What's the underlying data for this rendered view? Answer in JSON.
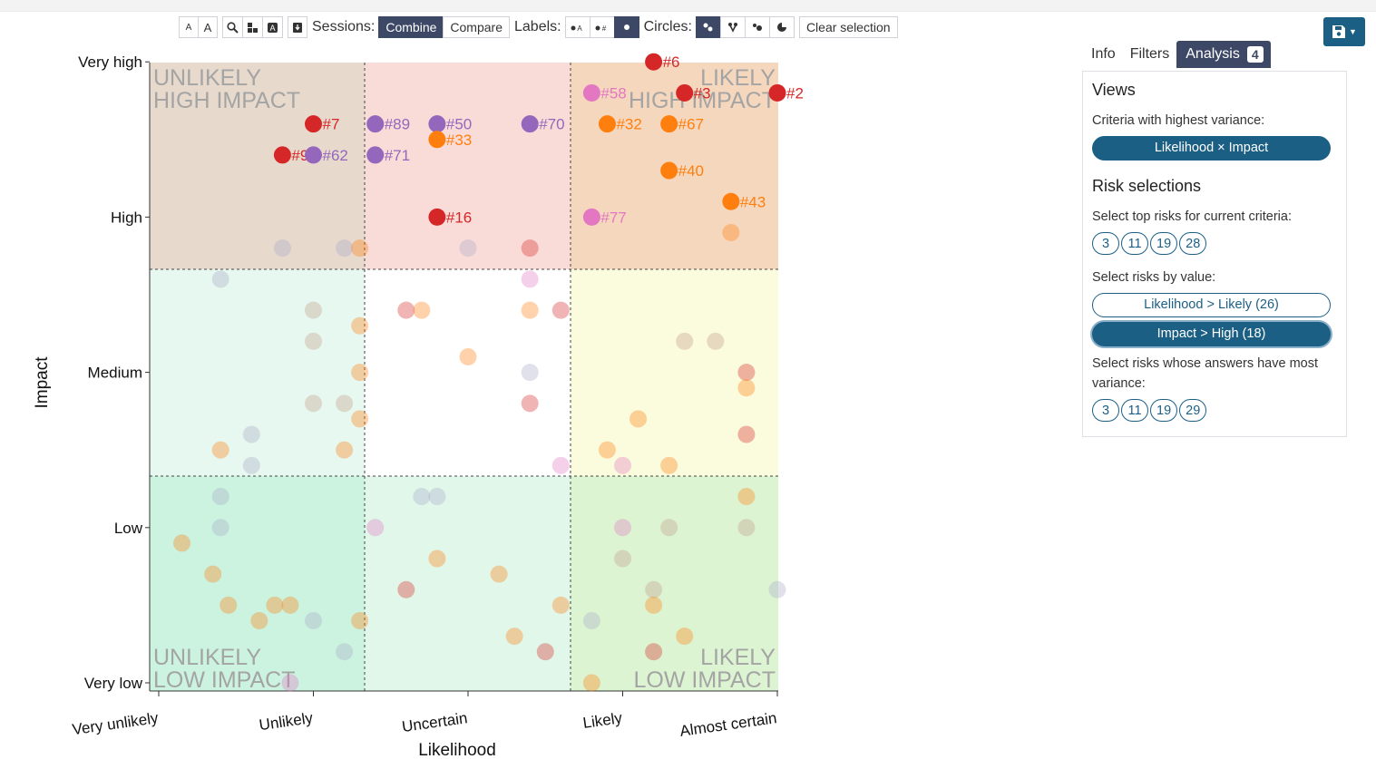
{
  "toolbar": {
    "font_small": "A",
    "font_large": "A",
    "sessions_label": "Sessions:",
    "combine": "Combine",
    "compare": "Compare",
    "labels_label": "Labels:",
    "circles_label": "Circles:",
    "clear": "Clear selection"
  },
  "tabs": {
    "info": "Info",
    "filters": "Filters",
    "analysis": "Analysis",
    "analysis_count": "4"
  },
  "panel": {
    "views_title": "Views",
    "variance_label": "Criteria with highest variance:",
    "variance_pill": "Likelihood × Impact",
    "risk_title": "Risk selections",
    "top_label": "Select top risks for current criteria:",
    "top_nums": [
      "3",
      "11",
      "19",
      "28"
    ],
    "value_label": "Select risks by value:",
    "likely_pill": "Likelihood > Likely (26)",
    "high_pill": "Impact > High (18)",
    "variance_answers_label": "Select risks whose answers have most variance:",
    "var_nums": [
      "3",
      "11",
      "19",
      "29"
    ]
  },
  "chart_data": {
    "type": "scatter",
    "xlabel": "Likelihood",
    "ylabel": "Impact",
    "x_categories": [
      "Very unlikely",
      "Unlikely",
      "Uncertain",
      "Likely",
      "Almost certain"
    ],
    "y_categories": [
      "Very low",
      "Low",
      "Medium",
      "High",
      "Very high"
    ],
    "quadrant_labels": {
      "top_left": [
        "UNLIKELY",
        "HIGH IMPACT"
      ],
      "top_right": [
        "LIKELY",
        "HIGH IMPACT"
      ],
      "bottom_left": [
        "UNLIKELY",
        "LOW IMPACT"
      ],
      "bottom_right": [
        "LIKELY",
        "LOW IMPACT"
      ]
    },
    "colors": {
      "red": "#d62728",
      "purple": "#9467bd",
      "orange": "#ff7f0e",
      "pink": "#e377c2",
      "gray": "#a9a9c9",
      "brown": "#c49a8a"
    },
    "highlighted": [
      {
        "label": "#6",
        "x": 4.2,
        "y": 5.0,
        "color": "red"
      },
      {
        "label": "#2",
        "x": 5.0,
        "y": 4.8,
        "color": "red"
      },
      {
        "label": "#3",
        "x": 4.4,
        "y": 4.8,
        "color": "red"
      },
      {
        "label": "#58",
        "x": 3.8,
        "y": 4.8,
        "color": "pink"
      },
      {
        "label": "#7",
        "x": 2.0,
        "y": 4.6,
        "color": "red"
      },
      {
        "label": "#89",
        "x": 2.4,
        "y": 4.6,
        "color": "purple"
      },
      {
        "label": "#50",
        "x": 2.8,
        "y": 4.6,
        "color": "purple"
      },
      {
        "label": "#70",
        "x": 3.4,
        "y": 4.6,
        "color": "purple"
      },
      {
        "label": "#32",
        "x": 3.9,
        "y": 4.6,
        "color": "orange"
      },
      {
        "label": "#67",
        "x": 4.3,
        "y": 4.6,
        "color": "orange"
      },
      {
        "label": "#33",
        "x": 2.8,
        "y": 4.5,
        "color": "orange"
      },
      {
        "label": "#9",
        "x": 1.8,
        "y": 4.4,
        "color": "red"
      },
      {
        "label": "#62",
        "x": 2.0,
        "y": 4.4,
        "color": "purple"
      },
      {
        "label": "#71",
        "x": 2.4,
        "y": 4.4,
        "color": "purple"
      },
      {
        "label": "#40",
        "x": 4.3,
        "y": 4.3,
        "color": "orange"
      },
      {
        "label": "#43",
        "x": 4.7,
        "y": 4.1,
        "color": "orange"
      },
      {
        "label": "#16",
        "x": 2.8,
        "y": 4.0,
        "color": "red"
      },
      {
        "label": "#77",
        "x": 3.8,
        "y": 4.0,
        "color": "pink"
      }
    ],
    "faded": [
      {
        "x": 1.8,
        "y": 3.8,
        "c": "gray"
      },
      {
        "x": 2.2,
        "y": 3.8,
        "c": "gray"
      },
      {
        "x": 2.3,
        "y": 3.8,
        "c": "orange"
      },
      {
        "x": 3.0,
        "y": 3.8,
        "c": "gray"
      },
      {
        "x": 3.4,
        "y": 3.8,
        "c": "red"
      },
      {
        "x": 4.7,
        "y": 3.9,
        "c": "orange"
      },
      {
        "x": 1.4,
        "y": 3.6,
        "c": "gray"
      },
      {
        "x": 3.4,
        "y": 3.6,
        "c": "pink"
      },
      {
        "x": 2.0,
        "y": 3.4,
        "c": "brown"
      },
      {
        "x": 2.6,
        "y": 3.4,
        "c": "red"
      },
      {
        "x": 2.7,
        "y": 3.4,
        "c": "orange"
      },
      {
        "x": 3.4,
        "y": 3.4,
        "c": "orange"
      },
      {
        "x": 3.6,
        "y": 3.4,
        "c": "red"
      },
      {
        "x": 2.3,
        "y": 3.3,
        "c": "orange"
      },
      {
        "x": 2.0,
        "y": 3.2,
        "c": "brown"
      },
      {
        "x": 4.4,
        "y": 3.2,
        "c": "brown"
      },
      {
        "x": 4.6,
        "y": 3.2,
        "c": "brown"
      },
      {
        "x": 3.0,
        "y": 3.1,
        "c": "orange"
      },
      {
        "x": 2.3,
        "y": 3.0,
        "c": "orange"
      },
      {
        "x": 3.4,
        "y": 3.0,
        "c": "gray"
      },
      {
        "x": 4.8,
        "y": 3.0,
        "c": "red"
      },
      {
        "x": 4.8,
        "y": 2.9,
        "c": "orange"
      },
      {
        "x": 2.0,
        "y": 2.8,
        "c": "brown"
      },
      {
        "x": 2.2,
        "y": 2.8,
        "c": "brown"
      },
      {
        "x": 3.4,
        "y": 2.8,
        "c": "red"
      },
      {
        "x": 2.3,
        "y": 2.7,
        "c": "orange"
      },
      {
        "x": 4.1,
        "y": 2.7,
        "c": "orange"
      },
      {
        "x": 1.6,
        "y": 2.6,
        "c": "gray"
      },
      {
        "x": 4.8,
        "y": 2.6,
        "c": "red"
      },
      {
        "x": 1.4,
        "y": 2.5,
        "c": "orange"
      },
      {
        "x": 2.2,
        "y": 2.5,
        "c": "orange"
      },
      {
        "x": 3.9,
        "y": 2.5,
        "c": "orange"
      },
      {
        "x": 1.6,
        "y": 2.4,
        "c": "gray"
      },
      {
        "x": 3.6,
        "y": 2.4,
        "c": "pink"
      },
      {
        "x": 4.0,
        "y": 2.4,
        "c": "pink"
      },
      {
        "x": 4.3,
        "y": 2.4,
        "c": "orange"
      },
      {
        "x": 1.4,
        "y": 2.2,
        "c": "gray"
      },
      {
        "x": 2.7,
        "y": 2.2,
        "c": "gray"
      },
      {
        "x": 2.8,
        "y": 2.2,
        "c": "gray"
      },
      {
        "x": 4.8,
        "y": 2.2,
        "c": "orange"
      },
      {
        "x": 1.4,
        "y": 2.0,
        "c": "gray"
      },
      {
        "x": 2.4,
        "y": 2.0,
        "c": "pink"
      },
      {
        "x": 4.0,
        "y": 2.0,
        "c": "pink"
      },
      {
        "x": 4.3,
        "y": 2.0,
        "c": "brown"
      },
      {
        "x": 4.8,
        "y": 2.0,
        "c": "brown"
      },
      {
        "x": 1.15,
        "y": 1.9,
        "c": "orange"
      },
      {
        "x": 2.8,
        "y": 1.8,
        "c": "orange"
      },
      {
        "x": 4.0,
        "y": 1.8,
        "c": "brown"
      },
      {
        "x": 1.35,
        "y": 1.7,
        "c": "orange"
      },
      {
        "x": 3.2,
        "y": 1.7,
        "c": "orange"
      },
      {
        "x": 2.6,
        "y": 1.6,
        "c": "red"
      },
      {
        "x": 4.2,
        "y": 1.6,
        "c": "brown"
      },
      {
        "x": 5.0,
        "y": 1.6,
        "c": "gray"
      },
      {
        "x": 1.45,
        "y": 1.5,
        "c": "orange"
      },
      {
        "x": 1.75,
        "y": 1.5,
        "c": "orange"
      },
      {
        "x": 1.85,
        "y": 1.5,
        "c": "orange"
      },
      {
        "x": 3.6,
        "y": 1.5,
        "c": "orange"
      },
      {
        "x": 4.2,
        "y": 1.5,
        "c": "orange"
      },
      {
        "x": 1.65,
        "y": 1.4,
        "c": "orange"
      },
      {
        "x": 2.0,
        "y": 1.4,
        "c": "gray"
      },
      {
        "x": 2.3,
        "y": 1.4,
        "c": "orange"
      },
      {
        "x": 3.8,
        "y": 1.4,
        "c": "gray"
      },
      {
        "x": 3.3,
        "y": 1.3,
        "c": "orange"
      },
      {
        "x": 4.4,
        "y": 1.3,
        "c": "orange"
      },
      {
        "x": 2.2,
        "y": 1.2,
        "c": "gray"
      },
      {
        "x": 3.5,
        "y": 1.2,
        "c": "red"
      },
      {
        "x": 4.2,
        "y": 1.2,
        "c": "red"
      },
      {
        "x": 1.85,
        "y": 1.0,
        "c": "pink"
      },
      {
        "x": 3.8,
        "y": 1.0,
        "c": "orange"
      }
    ]
  }
}
